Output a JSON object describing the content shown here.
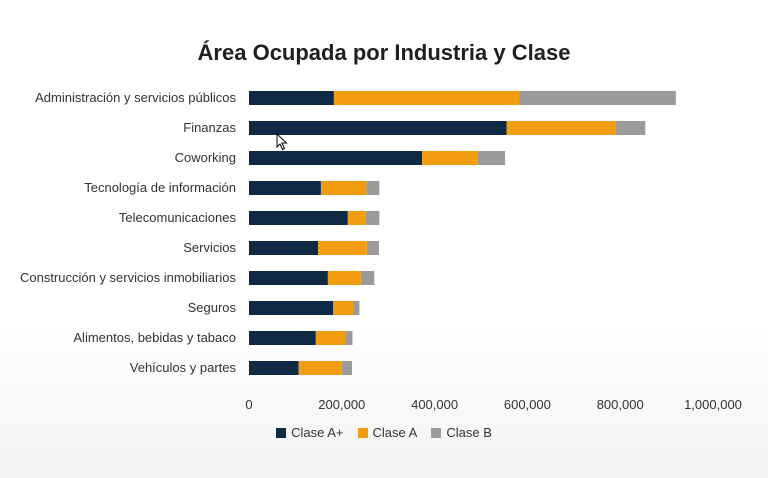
{
  "chart_data": {
    "type": "bar",
    "orientation": "horizontal",
    "stacked": true,
    "title": "Área Ocupada por Industria y Clase",
    "xlabel": "",
    "ylabel": "",
    "xlim": [
      0,
      1000000
    ],
    "x_ticks": [
      0,
      200000,
      400000,
      600000,
      800000,
      1000000
    ],
    "x_tick_labels": [
      "0",
      "200,000",
      "400,000",
      "600,000",
      "800,000",
      "1,000,000"
    ],
    "categories": [
      "Administración y servicios públicos",
      "Finanzas",
      "Coworking",
      "Tecnología de información",
      "Telecomunicaciones",
      "Servicios",
      "Construcción y servicios inmobiliarios",
      "Seguros",
      "Alimentos, bebidas y tabaco",
      "Vehículos y partes"
    ],
    "series": [
      {
        "name": "Clase A+",
        "color": "#0e2a45",
        "values": [
          183000,
          555000,
          373000,
          155000,
          213000,
          149000,
          170000,
          181000,
          144000,
          107000
        ]
      },
      {
        "name": "Clase A",
        "color": "#f39c12",
        "values": [
          400000,
          236000,
          120000,
          98000,
          39000,
          105000,
          71000,
          43000,
          64000,
          93000
        ]
      },
      {
        "name": "Clase B",
        "color": "#9b9b9b",
        "values": [
          337000,
          63000,
          59000,
          28000,
          29000,
          26000,
          29000,
          14000,
          15000,
          22000
        ]
      }
    ],
    "legend_position": "bottom",
    "grid": false
  }
}
